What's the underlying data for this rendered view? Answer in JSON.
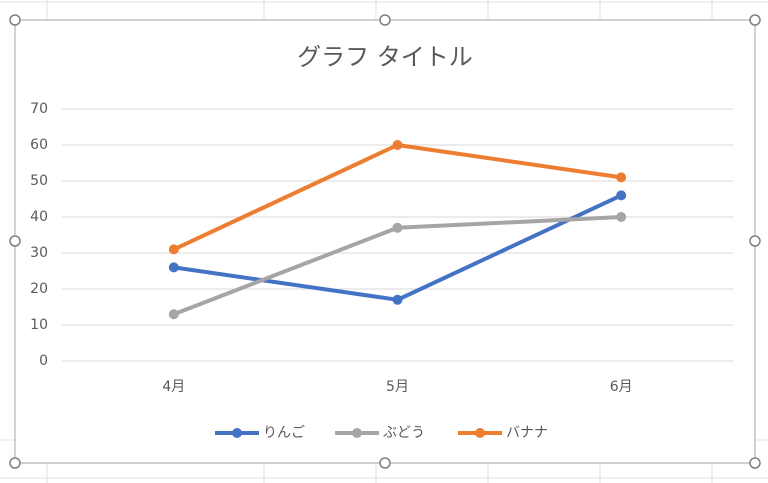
{
  "chart_data": {
    "type": "line",
    "title": "グラフ タイトル",
    "categories": [
      "4月",
      "5月",
      "6月"
    ],
    "series": [
      {
        "name": "りんご",
        "color": "#4472c4",
        "values": [
          26,
          17,
          46
        ]
      },
      {
        "name": "ぶどう",
        "color": "#a5a5a5",
        "values": [
          13,
          37,
          40
        ]
      },
      {
        "name": "バナナ",
        "color": "#ed7d31",
        "values": [
          31,
          60,
          51
        ]
      }
    ],
    "ylim": [
      0,
      70
    ],
    "yticks": [
      0,
      10,
      20,
      30,
      40,
      50,
      60,
      70
    ],
    "grid": true,
    "legend": "bottom"
  }
}
